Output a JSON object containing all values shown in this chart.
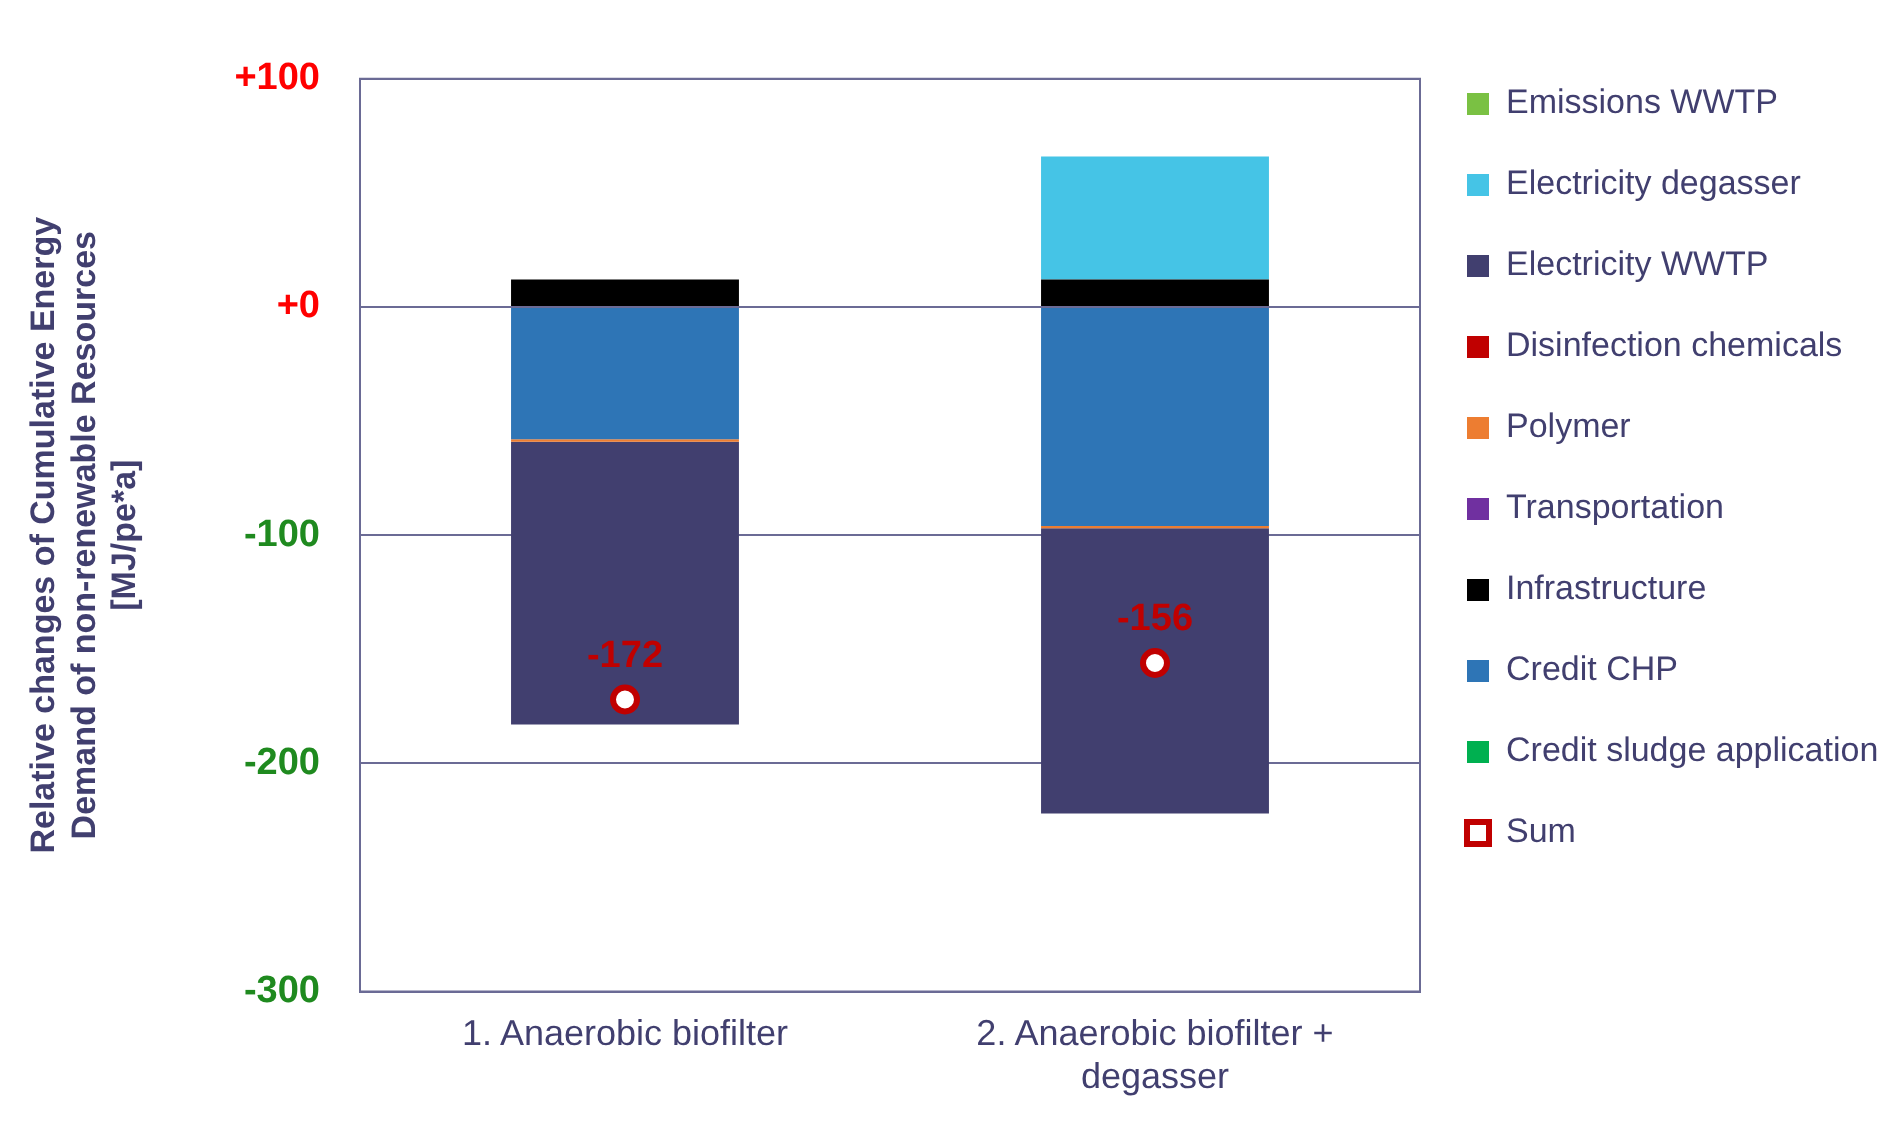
{
  "chart_data": {
    "type": "bar",
    "stacked": true,
    "ylabel": "Relative changes of Cumulative Energy Demand of non-renewable Resources [MJ/pe*a]",
    "categories": [
      "1. Anaerobic biofilter",
      "2. Anaerobic biofilter + degasser"
    ],
    "ylim": [
      -300,
      100
    ],
    "yticks": [
      {
        "value": 100,
        "label": "+100"
      },
      {
        "value": 0,
        "label": "+0"
      },
      -100,
      -200,
      -300
    ],
    "grid": "y",
    "legend": "right",
    "series": [
      {
        "name": "Credit sludge application",
        "color": "#00b050",
        "values": [
          0,
          0
        ]
      },
      {
        "name": "Credit CHP",
        "color": "#2e75b6",
        "values": [
          -58,
          -96
        ]
      },
      {
        "name": "Infrastructure",
        "color": "#000000",
        "values": [
          12,
          12
        ]
      },
      {
        "name": "Transportation",
        "color": "#7030a0",
        "values": [
          0,
          0
        ]
      },
      {
        "name": "Polymer",
        "color": "#ed7d31",
        "values": [
          -1,
          -1
        ]
      },
      {
        "name": "Disinfection chemicals",
        "color": "#c00000",
        "values": [
          0,
          0
        ]
      },
      {
        "name": "Electricity WWTP",
        "color": "#413f6f",
        "values": [
          -124,
          -125
        ]
      },
      {
        "name": "Electricity degasser",
        "color": "#45c4e6",
        "values": [
          0,
          54
        ]
      },
      {
        "name": "Emissions WWTP",
        "color": "#7ac143",
        "values": [
          0,
          0
        ]
      },
      {
        "name": "Sum",
        "type": "scatter",
        "marker": "circle",
        "color": "#c00000",
        "values": [
          -172,
          -156
        ],
        "value_labels": [
          "-172",
          "-156"
        ]
      }
    ]
  }
}
